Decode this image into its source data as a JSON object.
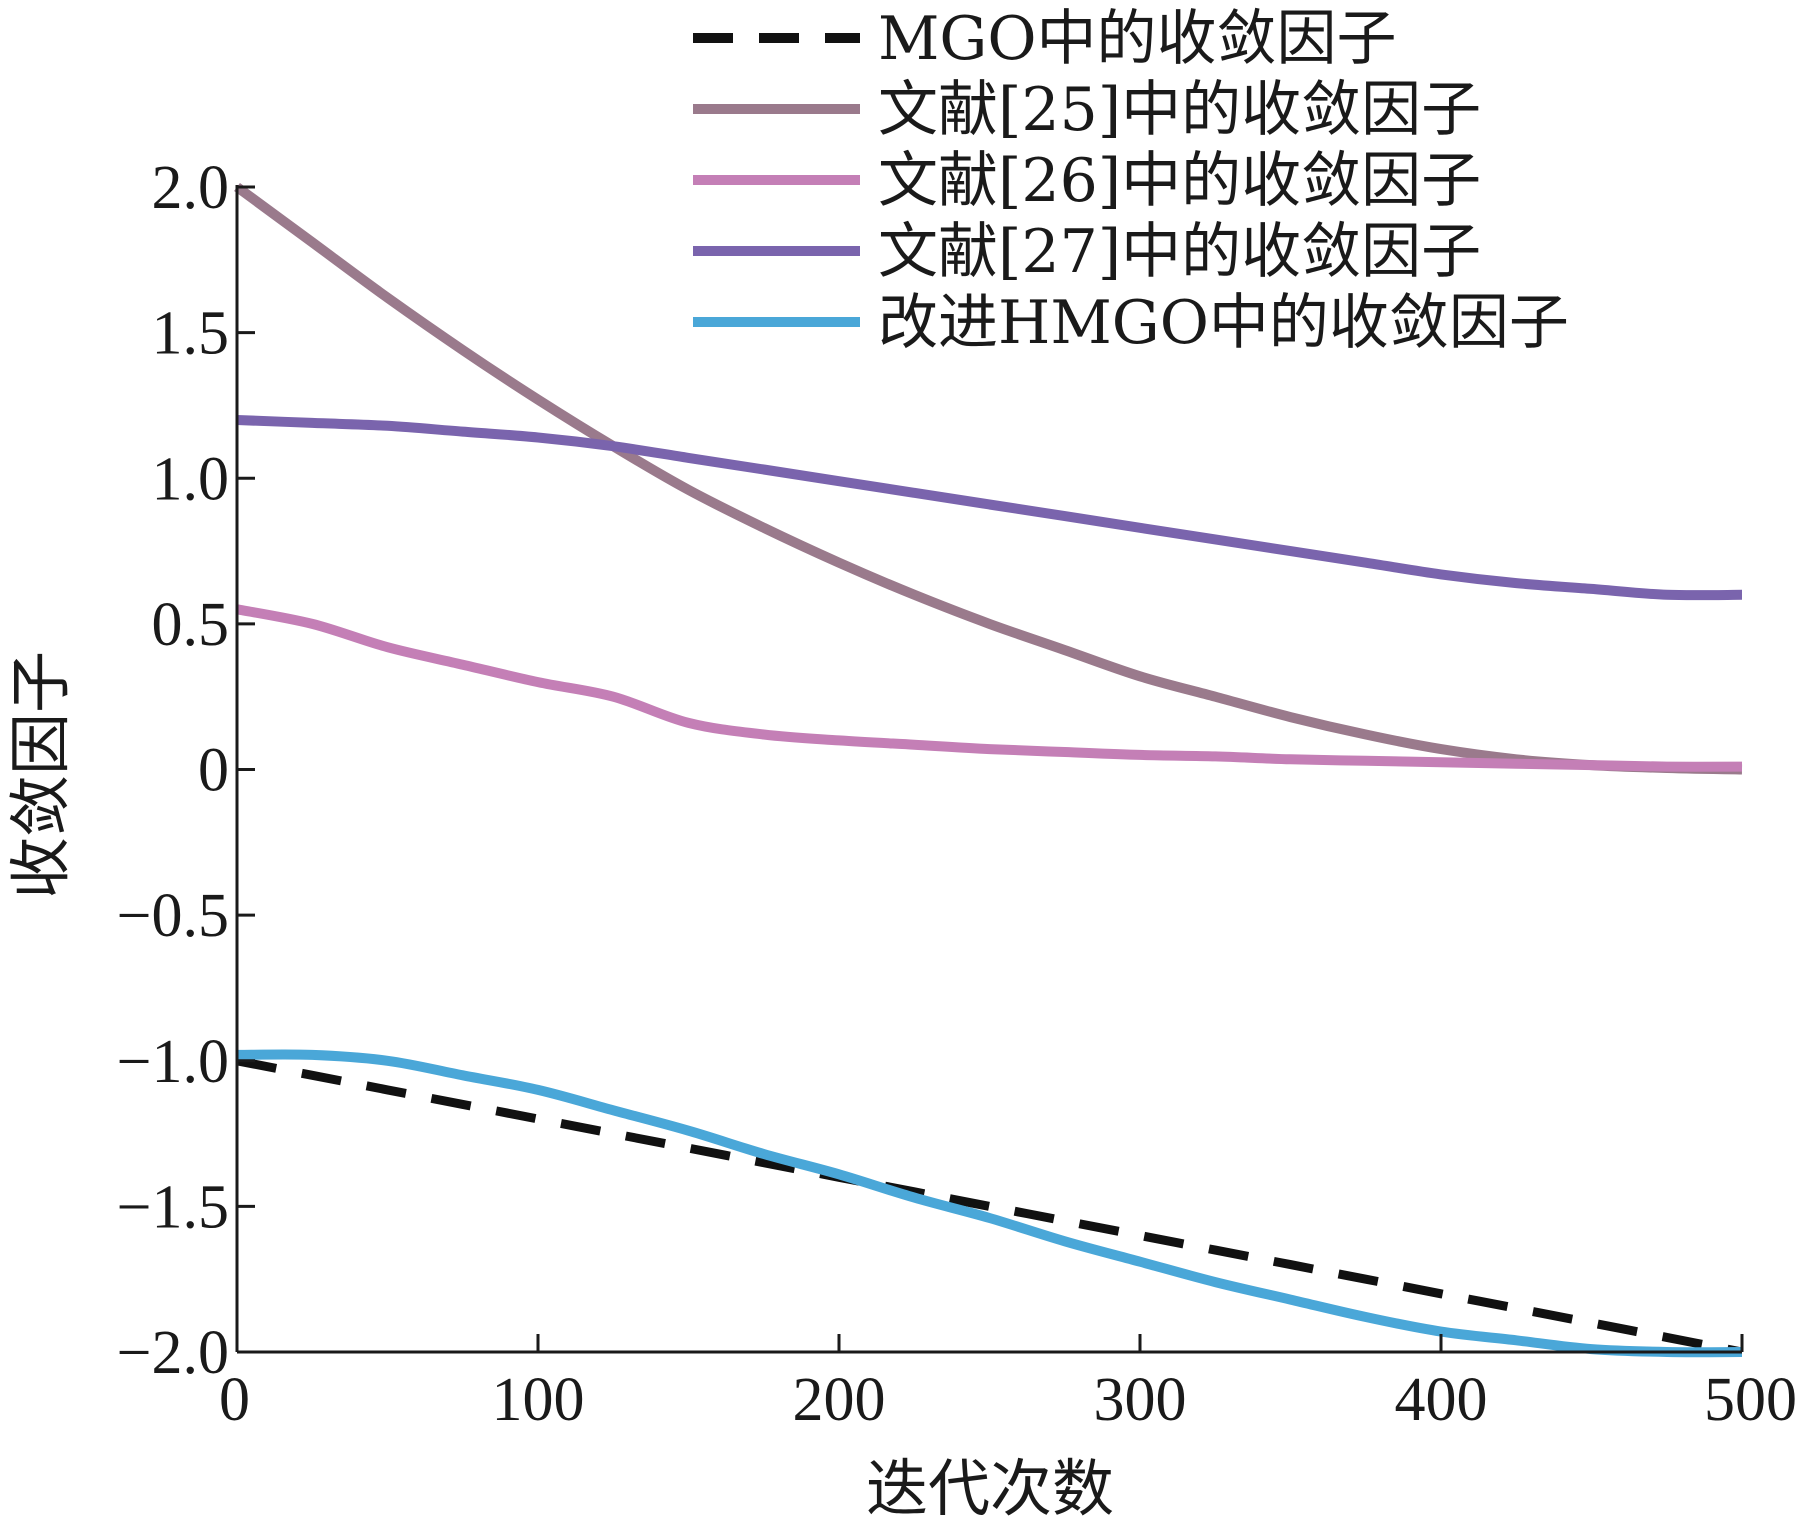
{
  "chart_data": {
    "type": "line",
    "title": "",
    "xlabel": "迭代次数",
    "ylabel": "收敛因子",
    "xlim": [
      0,
      500
    ],
    "ylim": [
      -2.0,
      2.0
    ],
    "x_ticks": [
      0,
      100,
      200,
      300,
      400,
      500
    ],
    "x_tick_labels": [
      "0",
      "100",
      "200",
      "300",
      "400",
      "500"
    ],
    "y_ticks": [
      -2.0,
      -1.5,
      -1.0,
      -0.5,
      0,
      0.5,
      1.0,
      1.5,
      2.0
    ],
    "y_tick_labels": [
      "−2.0",
      "−1.5",
      "−1.0",
      "−0.5",
      "0",
      "0.5",
      "1.0",
      "1.5",
      "2.0"
    ],
    "grid": false,
    "legend_position": "top-right",
    "x": [
      0,
      25,
      50,
      75,
      100,
      125,
      150,
      175,
      200,
      225,
      250,
      275,
      300,
      325,
      350,
      375,
      400,
      425,
      450,
      475,
      500
    ],
    "series": [
      {
        "name": "MGO中的收敛因子",
        "color": "#111111",
        "style": "dashed",
        "values": [
          -1.0,
          -1.05,
          -1.1,
          -1.15,
          -1.2,
          -1.25,
          -1.3,
          -1.35,
          -1.4,
          -1.45,
          -1.5,
          -1.55,
          -1.6,
          -1.65,
          -1.7,
          -1.75,
          -1.8,
          -1.85,
          -1.9,
          -1.95,
          -2.0
        ]
      },
      {
        "name": "文献[25]中的收敛因子",
        "color": "#9a7a8c",
        "style": "solid",
        "values": [
          2.0,
          1.81,
          1.62,
          1.44,
          1.27,
          1.11,
          0.96,
          0.83,
          0.71,
          0.6,
          0.5,
          0.41,
          0.32,
          0.25,
          0.18,
          0.12,
          0.07,
          0.035,
          0.015,
          0.005,
          0.0
        ]
      },
      {
        "name": "文献[26]中的收敛因子",
        "color": "#c47fb6",
        "style": "solid",
        "values": [
          0.55,
          0.5,
          0.42,
          0.36,
          0.3,
          0.25,
          0.16,
          0.12,
          0.1,
          0.085,
          0.07,
          0.06,
          0.05,
          0.045,
          0.035,
          0.03,
          0.025,
          0.02,
          0.015,
          0.01,
          0.01
        ]
      },
      {
        "name": "文献[27]中的收敛因子",
        "color": "#7a64ad",
        "style": "solid",
        "values": [
          1.2,
          1.19,
          1.18,
          1.16,
          1.14,
          1.11,
          1.07,
          1.03,
          0.99,
          0.95,
          0.91,
          0.87,
          0.83,
          0.79,
          0.75,
          0.71,
          0.67,
          0.64,
          0.62,
          0.6,
          0.6
        ]
      },
      {
        "name": "改进HMGO中的收敛因子",
        "color": "#4aa7d8",
        "style": "solid",
        "values": [
          -0.98,
          -0.98,
          -1.0,
          -1.05,
          -1.1,
          -1.17,
          -1.24,
          -1.32,
          -1.39,
          -1.47,
          -1.54,
          -1.62,
          -1.69,
          -1.76,
          -1.82,
          -1.88,
          -1.93,
          -1.96,
          -1.99,
          -2.0,
          -2.0
        ]
      }
    ]
  }
}
